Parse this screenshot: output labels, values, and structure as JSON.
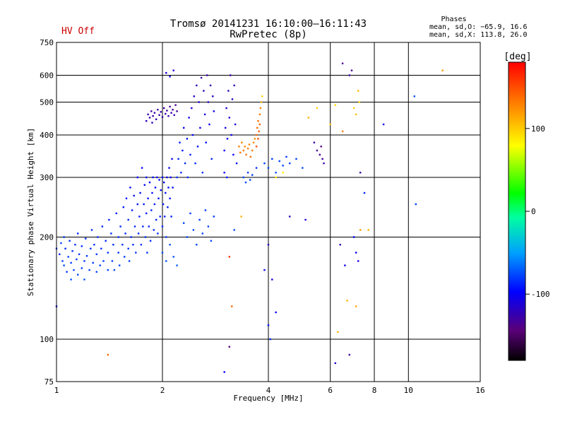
{
  "header": {
    "status": "HV Off",
    "status_color": "#cc0000",
    "title_line1": "Tromsø 20141231 16:10:00–16:11:43",
    "title_line2": "RwPretec (8p)",
    "phases_title": "Phases",
    "phases_o": "mean, sd,O: −65.9, 16.6",
    "phases_x": "mean, sd,X: 113.8, 26.0"
  },
  "chart_data": {
    "type": "scatter",
    "xlabel": "Frequency [MHz]",
    "ylabel": "Stationary phase Virtual Height [km]",
    "xscale": "log",
    "yscale": "log",
    "xlim": [
      1,
      16
    ],
    "ylim": [
      75,
      750
    ],
    "x_ticks": [
      1,
      2,
      4,
      6,
      8,
      10,
      16
    ],
    "y_ticks": [
      75,
      100,
      200,
      300,
      400,
      500,
      600,
      750
    ],
    "grid": true,
    "colorbar": {
      "label": "[deg]",
      "range": [
        -180,
        180
      ],
      "ticks": [
        100,
        0,
        -100
      ]
    },
    "points": [
      [
        1.0,
        185,
        -85
      ],
      [
        1.02,
        178,
        -88
      ],
      [
        1.03,
        192,
        -80
      ],
      [
        1.04,
        170,
        -82
      ],
      [
        1.05,
        200,
        -84
      ],
      [
        1.05,
        165,
        -78
      ],
      [
        1.06,
        185,
        -87
      ],
      [
        1.07,
        158,
        -83
      ],
      [
        1.08,
        175,
        -80
      ],
      [
        1.09,
        195,
        -86
      ],
      [
        1.1,
        150,
        -75
      ],
      [
        1.1,
        168,
        -82
      ],
      [
        1.11,
        182,
        -84
      ],
      [
        1.12,
        160,
        -79
      ],
      [
        1.13,
        190,
        -85
      ],
      [
        1.14,
        172,
        -81
      ],
      [
        1.15,
        155,
        -77
      ],
      [
        1.15,
        205,
        -88
      ],
      [
        1.16,
        178,
        -83
      ],
      [
        1.18,
        162,
        -80
      ],
      [
        1.18,
        188,
        -86
      ],
      [
        1.2,
        170,
        -82
      ],
      [
        1.2,
        150,
        -76
      ],
      [
        1.21,
        198,
        -87
      ],
      [
        1.22,
        176,
        -83
      ],
      [
        1.24,
        160,
        -79
      ],
      [
        1.25,
        185,
        -85
      ],
      [
        1.26,
        210,
        -88
      ],
      [
        1.27,
        168,
        -81
      ],
      [
        1.28,
        190,
        -86
      ],
      [
        1.3,
        158,
        -78
      ],
      [
        1.3,
        178,
        -83
      ],
      [
        1.31,
        200,
        -87
      ],
      [
        1.33,
        165,
        -80
      ],
      [
        1.34,
        185,
        -85
      ],
      [
        1.35,
        215,
        -89
      ],
      [
        1.36,
        170,
        -82
      ],
      [
        1.38,
        195,
        -86
      ],
      [
        1.4,
        160,
        -79
      ],
      [
        1.4,
        180,
        -84
      ],
      [
        1.41,
        225,
        -90
      ],
      [
        1.43,
        205,
        -87
      ],
      [
        1.44,
        170,
        -82
      ],
      [
        1.45,
        190,
        -85
      ],
      [
        1.46,
        160,
        -78
      ],
      [
        1.48,
        235,
        -91
      ],
      [
        1.5,
        180,
        -84
      ],
      [
        1.5,
        200,
        -86
      ],
      [
        1.51,
        165,
        -80
      ],
      [
        1.52,
        215,
        -88
      ],
      [
        1.54,
        190,
        -85
      ],
      [
        1.55,
        245,
        -93
      ],
      [
        1.56,
        175,
        -82
      ],
      [
        1.57,
        205,
        -87
      ],
      [
        1.58,
        260,
        -95
      ],
      [
        1.6,
        185,
        -84
      ],
      [
        1.6,
        225,
        -89
      ],
      [
        1.61,
        170,
        -81
      ],
      [
        1.62,
        280,
        -97
      ],
      [
        1.63,
        200,
        -86
      ],
      [
        1.64,
        240,
        -92
      ],
      [
        1.65,
        190,
        -85
      ],
      [
        1.66,
        265,
        -96
      ],
      [
        1.67,
        215,
        -88
      ],
      [
        1.68,
        180,
        -83
      ],
      [
        1.7,
        250,
        -93
      ],
      [
        1.7,
        300,
        -100
      ],
      [
        1.71,
        205,
        -87
      ],
      [
        1.72,
        230,
        -90
      ],
      [
        1.73,
        270,
        -96
      ],
      [
        1.74,
        190,
        -85
      ],
      [
        1.75,
        320,
        -103
      ],
      [
        1.76,
        215,
        -88
      ],
      [
        1.77,
        250,
        -93
      ],
      [
        1.78,
        285,
        -98
      ],
      [
        1.79,
        200,
        -86
      ],
      [
        1.8,
        235,
        -91
      ],
      [
        1.8,
        300,
        -100
      ],
      [
        1.81,
        180,
        -84
      ],
      [
        1.82,
        260,
        -94
      ],
      [
        1.83,
        215,
        -88
      ],
      [
        1.84,
        290,
        -99
      ],
      [
        1.85,
        195,
        -85
      ],
      [
        1.86,
        240,
        -92
      ],
      [
        1.87,
        270,
        -96
      ],
      [
        1.88,
        300,
        -100
      ],
      [
        1.89,
        210,
        -87
      ],
      [
        1.9,
        250,
        -93
      ],
      [
        1.91,
        280,
        -98
      ],
      [
        1.92,
        225,
        -89
      ],
      [
        1.93,
        300,
        -100
      ],
      [
        1.94,
        205,
        -86
      ],
      [
        1.95,
        260,
        -95
      ],
      [
        1.96,
        295,
        -99
      ],
      [
        1.97,
        230,
        -90
      ],
      [
        1.98,
        275,
        -97
      ],
      [
        2.0,
        300,
        -100
      ],
      [
        2.0,
        215,
        -88
      ],
      [
        2.01,
        250,
        -93
      ],
      [
        2.02,
        290,
        -99
      ],
      [
        2.03,
        230,
        -91
      ],
      [
        2.04,
        270,
        -96
      ],
      [
        2.05,
        200,
        -86
      ],
      [
        2.06,
        300,
        -101
      ],
      [
        2.07,
        245,
        -92
      ],
      [
        2.08,
        280,
        -97
      ],
      [
        2.09,
        320,
        -104
      ],
      [
        2.1,
        260,
        -95
      ],
      [
        2.11,
        300,
        -100
      ],
      [
        2.12,
        230,
        -90
      ],
      [
        2.13,
        340,
        -106
      ],
      [
        2.14,
        280,
        -97
      ],
      [
        1.82,
        460,
        -125
      ],
      [
        1.84,
        450,
        -123
      ],
      [
        1.86,
        470,
        -127
      ],
      [
        1.88,
        455,
        -124
      ],
      [
        1.9,
        465,
        -126
      ],
      [
        1.92,
        445,
        -122
      ],
      [
        1.94,
        475,
        -128
      ],
      [
        1.96,
        458,
        -125
      ],
      [
        1.98,
        468,
        -126
      ],
      [
        2.0,
        452,
        -124
      ],
      [
        2.02,
        480,
        -129
      ],
      [
        2.04,
        462,
        -126
      ],
      [
        2.06,
        472,
        -127
      ],
      [
        2.08,
        455,
        -124
      ],
      [
        2.1,
        485,
        -130
      ],
      [
        2.12,
        465,
        -126
      ],
      [
        2.14,
        475,
        -128
      ],
      [
        2.16,
        458,
        -125
      ],
      [
        1.8,
        440,
        -120
      ],
      [
        1.87,
        435,
        -119
      ],
      [
        2.18,
        490,
        -131
      ],
      [
        2.2,
        470,
        -127
      ],
      [
        2.05,
        610,
        -110
      ],
      [
        2.1,
        595,
        -108
      ],
      [
        2.15,
        620,
        -112
      ],
      [
        2.2,
        300,
        -85
      ],
      [
        2.22,
        340,
        -90
      ],
      [
        2.24,
        380,
        -95
      ],
      [
        2.26,
        310,
        -86
      ],
      [
        2.28,
        360,
        -92
      ],
      [
        2.3,
        420,
        -100
      ],
      [
        2.32,
        330,
        -88
      ],
      [
        2.35,
        390,
        -96
      ],
      [
        2.36,
        300,
        -85
      ],
      [
        2.38,
        450,
        -105
      ],
      [
        2.4,
        350,
        -90
      ],
      [
        2.42,
        480,
        -110
      ],
      [
        2.44,
        400,
        -98
      ],
      [
        2.46,
        520,
        -115
      ],
      [
        2.48,
        330,
        -88
      ],
      [
        2.5,
        560,
        -120
      ],
      [
        2.52,
        370,
        -93
      ],
      [
        2.54,
        500,
        -113
      ],
      [
        2.56,
        420,
        -101
      ],
      [
        2.58,
        590,
        -125
      ],
      [
        2.6,
        310,
        -86
      ],
      [
        2.62,
        540,
        -118
      ],
      [
        2.64,
        460,
        -107
      ],
      [
        2.66,
        380,
        -95
      ],
      [
        2.68,
        600,
        -126
      ],
      [
        2.7,
        500,
        -113
      ],
      [
        2.72,
        430,
        -103
      ],
      [
        2.74,
        560,
        -121
      ],
      [
        2.76,
        340,
        -89
      ],
      [
        2.78,
        520,
        -116
      ],
      [
        2.8,
        470,
        -108
      ],
      [
        2.3,
        220,
        -80
      ],
      [
        2.35,
        200,
        -78
      ],
      [
        2.4,
        235,
        -82
      ],
      [
        2.45,
        210,
        -79
      ],
      [
        2.5,
        190,
        -76
      ],
      [
        2.55,
        225,
        -81
      ],
      [
        2.6,
        205,
        -78
      ],
      [
        2.65,
        240,
        -83
      ],
      [
        2.7,
        215,
        -80
      ],
      [
        2.75,
        195,
        -77
      ],
      [
        2.8,
        230,
        -82
      ],
      [
        2.0,
        180,
        -75
      ],
      [
        2.05,
        170,
        -73
      ],
      [
        2.1,
        190,
        -76
      ],
      [
        2.15,
        175,
        -74
      ],
      [
        2.2,
        165,
        -72
      ],
      [
        3.0,
        360,
        -100
      ],
      [
        3.02,
        420,
        -108
      ],
      [
        3.04,
        480,
        -115
      ],
      [
        3.06,
        390,
        -104
      ],
      [
        3.08,
        540,
        -120
      ],
      [
        3.1,
        450,
        -112
      ],
      [
        3.12,
        600,
        -125
      ],
      [
        3.14,
        400,
        -105
      ],
      [
        3.16,
        510,
        -117
      ],
      [
        3.18,
        350,
        -99
      ],
      [
        3.2,
        560,
        -122
      ],
      [
        3.22,
        430,
        -110
      ],
      [
        3.25,
        330,
        -96
      ],
      [
        3.0,
        310,
        -95
      ],
      [
        3.05,
        300,
        -93
      ],
      [
        3.3,
        370,
        130
      ],
      [
        3.33,
        355,
        135
      ],
      [
        3.36,
        380,
        128
      ],
      [
        3.4,
        360,
        132
      ],
      [
        3.43,
        370,
        126
      ],
      [
        3.46,
        350,
        134
      ],
      [
        3.5,
        365,
        130
      ],
      [
        3.53,
        375,
        128
      ],
      [
        3.56,
        345,
        136
      ],
      [
        3.6,
        360,
        131
      ],
      [
        3.63,
        380,
        127
      ],
      [
        3.66,
        390,
        125
      ],
      [
        3.7,
        400,
        140
      ],
      [
        3.72,
        420,
        138
      ],
      [
        3.74,
        440,
        135
      ],
      [
        3.76,
        410,
        142
      ],
      [
        3.78,
        460,
        132
      ],
      [
        3.8,
        480,
        128
      ],
      [
        3.82,
        500,
        110
      ],
      [
        3.84,
        520,
        95
      ],
      [
        3.78,
        430,
        140
      ],
      [
        3.74,
        390,
        145
      ],
      [
        3.7,
        370,
        148
      ],
      [
        3.4,
        300,
        -80
      ],
      [
        3.45,
        290,
        -78
      ],
      [
        3.5,
        310,
        -82
      ],
      [
        3.55,
        295,
        -79
      ],
      [
        3.6,
        305,
        -81
      ],
      [
        3.7,
        320,
        -85
      ],
      [
        3.9,
        330,
        -80
      ],
      [
        4.0,
        320,
        -78
      ],
      [
        4.1,
        340,
        -82
      ],
      [
        4.2,
        310,
        -76
      ],
      [
        4.3,
        335,
        -80
      ],
      [
        4.4,
        325,
        -79
      ],
      [
        4.5,
        345,
        -83
      ],
      [
        4.6,
        330,
        -80
      ],
      [
        4.8,
        340,
        -81
      ],
      [
        5.0,
        320,
        -78
      ],
      [
        4.2,
        300,
        90
      ],
      [
        4.4,
        310,
        88
      ],
      [
        5.4,
        380,
        -125
      ],
      [
        5.5,
        360,
        -130
      ],
      [
        5.6,
        350,
        -132
      ],
      [
        5.7,
        340,
        -128
      ],
      [
        5.65,
        370,
        -135
      ],
      [
        5.75,
        330,
        -126
      ],
      [
        5.2,
        450,
        110
      ],
      [
        5.5,
        480,
        100
      ],
      [
        6.0,
        430,
        105
      ],
      [
        6.2,
        490,
        95
      ],
      [
        6.5,
        410,
        130
      ],
      [
        7.0,
        480,
        100
      ],
      [
        7.1,
        460,
        105
      ],
      [
        7.2,
        540,
        110
      ],
      [
        7.25,
        500,
        98
      ],
      [
        6.8,
        600,
        -125
      ],
      [
        6.9,
        620,
        -130
      ],
      [
        6.5,
        650,
        -135
      ],
      [
        7.0,
        200,
        -100
      ],
      [
        7.1,
        180,
        -105
      ],
      [
        7.2,
        170,
        -110
      ],
      [
        6.6,
        165,
        -108
      ],
      [
        6.4,
        190,
        -120
      ],
      [
        6.7,
        130,
        110
      ],
      [
        7.1,
        125,
        115
      ],
      [
        7.3,
        310,
        -125
      ],
      [
        7.5,
        270,
        -90
      ],
      [
        8.5,
        430,
        -95
      ],
      [
        10.5,
        250,
        -80
      ],
      [
        10.4,
        520,
        -75
      ],
      [
        12.5,
        620,
        120
      ],
      [
        6.3,
        105,
        110
      ],
      [
        6.8,
        90,
        -130
      ],
      [
        4.0,
        110,
        -95
      ],
      [
        4.05,
        100,
        -90
      ],
      [
        4.1,
        150,
        -110
      ],
      [
        4.2,
        120,
        -100
      ],
      [
        4.0,
        190,
        -120
      ],
      [
        3.9,
        160,
        -105
      ],
      [
        3.2,
        210,
        -78
      ],
      [
        3.35,
        230,
        110
      ],
      [
        3.1,
        175,
        160
      ],
      [
        3.15,
        125,
        140
      ],
      [
        3.1,
        95,
        -140
      ],
      [
        3.0,
        80,
        -100
      ],
      [
        1.0,
        125,
        -100
      ],
      [
        1.4,
        90,
        140
      ],
      [
        4.6,
        230,
        -120
      ],
      [
        5.1,
        225,
        -110
      ],
      [
        7.3,
        210,
        120
      ],
      [
        7.7,
        210,
        110
      ],
      [
        6.2,
        85,
        -120
      ]
    ]
  }
}
